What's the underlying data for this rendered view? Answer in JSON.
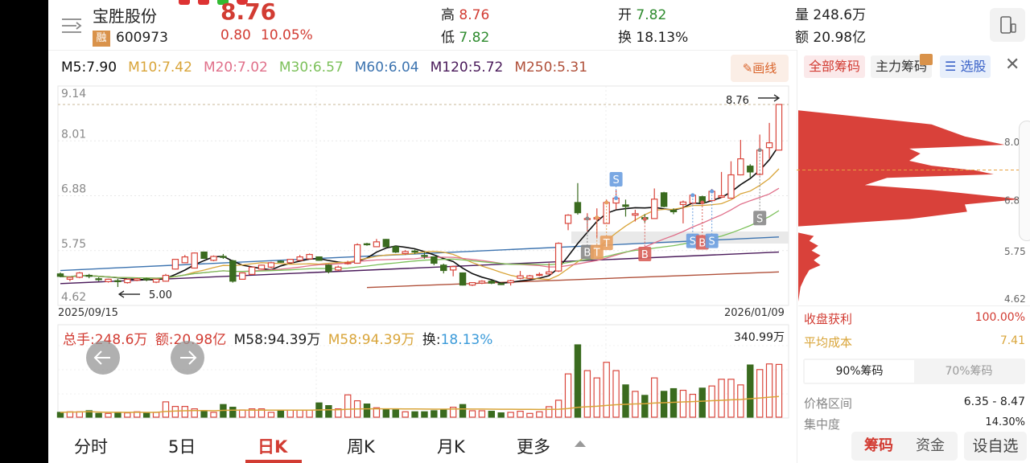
{
  "stock": {
    "name": "宝胜股份",
    "badge": "融",
    "code": "600973",
    "price": "8.76",
    "change": "0.80",
    "change_pct": "10.05%"
  },
  "quote": {
    "high_label": "高",
    "high": "8.76",
    "low_label": "低",
    "low": "7.82",
    "open_label": "开",
    "open": "7.82",
    "turnover_label": "换",
    "turnover": "18.13%",
    "volume_label": "量",
    "volume": "248.6万",
    "amount_label": "额",
    "amount": "20.98亿"
  },
  "ma_legend": [
    {
      "text": "M5:7.90",
      "color": "#111111"
    },
    {
      "text": "M10:7.42",
      "color": "#d9a53a"
    },
    {
      "text": "M20:7.02",
      "color": "#e0708a"
    },
    {
      "text": "M30:6.57",
      "color": "#7cc05a"
    },
    {
      "text": "M60:6.04",
      "color": "#3d74b0"
    },
    {
      "text": "M120:5.72",
      "color": "#4a1a5a"
    },
    {
      "text": "M250:5.31",
      "color": "#b0503a"
    }
  ],
  "draw_button": "画线",
  "chart": {
    "price_ticks": [
      "9.14",
      "8.01",
      "6.88",
      "5.75",
      "4.62"
    ],
    "ylim": [
      4.62,
      9.14
    ],
    "last_price_label": "8.76",
    "min_price_label": "5.00",
    "date_start": "2025/09/15",
    "date_end": "2026/01/09",
    "colors": {
      "up": "#d9463c",
      "down": "#3a6b1f"
    },
    "ohlc": [
      [
        5.27,
        5.3,
        5.2,
        5.22
      ],
      [
        5.16,
        5.21,
        5.12,
        5.2
      ],
      [
        5.2,
        5.31,
        5.18,
        5.29
      ],
      [
        5.24,
        5.27,
        5.18,
        5.23
      ],
      [
        5.17,
        5.2,
        5.12,
        5.16
      ],
      [
        5.11,
        5.17,
        5.09,
        5.16
      ],
      [
        5.13,
        5.17,
        5.0,
        5.12
      ],
      [
        5.09,
        5.17,
        5.07,
        5.16
      ],
      [
        5.14,
        5.19,
        5.12,
        5.17
      ],
      [
        5.17,
        5.19,
        5.12,
        5.15
      ],
      [
        5.1,
        5.17,
        5.08,
        5.16
      ],
      [
        5.12,
        5.27,
        5.11,
        5.24
      ],
      [
        5.37,
        5.58,
        5.36,
        5.57
      ],
      [
        5.5,
        5.66,
        5.49,
        5.62
      ],
      [
        5.39,
        5.71,
        5.38,
        5.7
      ],
      [
        5.72,
        5.73,
        5.58,
        5.59
      ],
      [
        5.55,
        5.65,
        5.53,
        5.63
      ],
      [
        5.63,
        5.68,
        5.58,
        5.62
      ],
      [
        5.54,
        5.56,
        5.09,
        5.12
      ],
      [
        5.16,
        5.3,
        5.15,
        5.29
      ],
      [
        5.26,
        5.42,
        5.25,
        5.41
      ],
      [
        5.37,
        5.46,
        5.36,
        5.45
      ],
      [
        5.41,
        5.52,
        5.38,
        5.5
      ],
      [
        5.53,
        5.55,
        5.5,
        5.52
      ],
      [
        5.5,
        5.58,
        5.49,
        5.57
      ],
      [
        5.55,
        5.66,
        5.54,
        5.62
      ],
      [
        5.58,
        5.69,
        5.57,
        5.67
      ],
      [
        5.62,
        5.63,
        5.54,
        5.55
      ],
      [
        5.45,
        5.47,
        5.28,
        5.32
      ],
      [
        5.35,
        5.44,
        5.33,
        5.41
      ],
      [
        5.48,
        5.54,
        5.46,
        5.5
      ],
      [
        5.49,
        5.9,
        5.48,
        5.87
      ],
      [
        5.89,
        5.91,
        5.85,
        5.88
      ],
      [
        5.83,
        5.99,
        5.82,
        5.93
      ],
      [
        5.98,
        5.99,
        5.83,
        5.83
      ],
      [
        5.83,
        5.85,
        5.7,
        5.72
      ],
      [
        5.69,
        5.76,
        5.66,
        5.73
      ],
      [
        5.74,
        5.77,
        5.68,
        5.73
      ],
      [
        5.65,
        5.72,
        5.58,
        5.64
      ],
      [
        5.62,
        5.63,
        5.45,
        5.49
      ],
      [
        5.45,
        5.48,
        5.28,
        5.34
      ],
      [
        5.35,
        5.44,
        5.22,
        5.42
      ],
      [
        5.29,
        5.3,
        5.03,
        5.04
      ],
      [
        5.04,
        5.1,
        5.02,
        5.09
      ],
      [
        5.08,
        5.14,
        5.06,
        5.12
      ],
      [
        5.12,
        5.14,
        5.06,
        5.08
      ],
      [
        5.07,
        5.08,
        5.04,
        5.06
      ],
      [
        5.09,
        5.15,
        5.03,
        5.13
      ],
      [
        5.18,
        5.33,
        5.16,
        5.23
      ],
      [
        5.18,
        5.25,
        5.16,
        5.23
      ],
      [
        5.24,
        5.3,
        5.22,
        5.26
      ],
      [
        5.27,
        5.49,
        5.25,
        5.31
      ],
      [
        5.33,
        5.92,
        5.31,
        5.9
      ],
      [
        6.31,
        6.5,
        6.17,
        6.48
      ],
      [
        6.74,
        7.14,
        6.49,
        6.53
      ],
      [
        6.39,
        6.52,
        6.15,
        6.41
      ],
      [
        6.4,
        6.62,
        6.0,
        6.43
      ],
      [
        6.31,
        6.8,
        6.3,
        6.74
      ],
      [
        6.73,
        7.0,
        6.6,
        6.83
      ],
      [
        6.69,
        6.8,
        6.45,
        6.66
      ],
      [
        6.48,
        6.59,
        6.35,
        6.51
      ],
      [
        6.43,
        6.5,
        6.33,
        6.4
      ],
      [
        6.41,
        7.03,
        6.4,
        6.81
      ],
      [
        6.94,
        6.96,
        6.64,
        6.66
      ],
      [
        6.58,
        6.62,
        6.5,
        6.55
      ],
      [
        6.7,
        6.78,
        6.31,
        6.75
      ],
      [
        6.73,
        6.92,
        6.7,
        6.89
      ],
      [
        6.86,
        6.88,
        6.7,
        6.74
      ],
      [
        6.78,
        7.02,
        6.75,
        6.97
      ],
      [
        6.85,
        7.37,
        6.83,
        6.88
      ],
      [
        6.83,
        7.59,
        6.82,
        7.31
      ],
      [
        7.31,
        8.03,
        7.3,
        7.64
      ],
      [
        7.49,
        7.53,
        7.26,
        7.37
      ],
      [
        7.32,
        8.14,
        7.3,
        7.82
      ],
      [
        7.87,
        8.38,
        7.64,
        7.97
      ],
      [
        7.82,
        8.76,
        7.82,
        8.76
      ]
    ],
    "long_ma": [
      {
        "name": "M60",
        "from": 5.34,
        "to": 6.03,
        "start": 0,
        "color": "#3d74b0"
      },
      {
        "name": "M120",
        "from": 5.07,
        "to": 5.72,
        "start": 0,
        "color": "#4a1a5a"
      },
      {
        "name": "M250",
        "from": 4.99,
        "to": 5.31,
        "start": 32,
        "color": "#b0503a"
      }
    ],
    "markers": [
      {
        "label": "B",
        "candle": 56,
        "price": 5.72,
        "color": "#8a8a8a"
      },
      {
        "label": "T",
        "candle": 57,
        "price": 5.72,
        "color": "#e8a060"
      },
      {
        "label": "T",
        "candle": 58,
        "price": 5.91,
        "color": "#e8a060"
      },
      {
        "label": "S",
        "candle": 59,
        "price": 7.22,
        "color": "#6b9fe0"
      },
      {
        "label": "B",
        "candle": 62,
        "price": 5.68,
        "color": "#d9605a"
      },
      {
        "label": "S",
        "candle": 67,
        "price": 5.95,
        "color": "#6b9fe0"
      },
      {
        "label": "B",
        "candle": 68,
        "price": 5.92,
        "color": "#d9605a"
      },
      {
        "label": "S",
        "candle": 69,
        "price": 5.95,
        "color": "#6b9fe0"
      },
      {
        "label": "S",
        "candle": 74,
        "price": 6.42,
        "color": "#8a8a8a"
      }
    ]
  },
  "volume": {
    "total_label": "总手:248.6万",
    "amount_label": "额:20.98亿",
    "ma1_label": "M58:94.39万",
    "ma2_label": "M58:94.39万",
    "turnover_prefix": "换:",
    "turnover_value": "18.13%",
    "max_label": "340.99万",
    "max": 340.99,
    "values": [
      22.8,
      25.4,
      25.4,
      30.4,
      17.8,
      17.8,
      22.8,
      20.3,
      25.4,
      20.3,
      22.8,
      72.3,
      50.7,
      50.7,
      39.3,
      30.4,
      22.8,
      59.6,
      46.9,
      34.2,
      39.3,
      39.3,
      22.8,
      33.0,
      33.0,
      33.0,
      33.0,
      67.2,
      54.5,
      39.3,
      105.2,
      77.3,
      62.1,
      44.4,
      36.8,
      34.2,
      25.4,
      25.4,
      25.4,
      30.4,
      34.2,
      46.9,
      59.6,
      30.4,
      30.4,
      27.9,
      20.3,
      22.8,
      27.9,
      17.8,
      25.4,
      49.5,
      79.9,
      204.1,
      341.0,
      219.4,
      185.1,
      258.7,
      219.4,
      152.2,
      121.7,
      102.7,
      185.1,
      121.7,
      134.4,
      126.8,
      107.8,
      136.9,
      147.1,
      178.8,
      178.8,
      152.2,
      246.0,
      224.4,
      251.0,
      248.6
    ]
  },
  "bottom_tabs": [
    {
      "label": "分时"
    },
    {
      "label": "5日"
    },
    {
      "label": "日K",
      "active": true
    },
    {
      "label": "周K"
    },
    {
      "label": "月K"
    },
    {
      "label": "更多"
    }
  ],
  "chips": {
    "tabs": [
      "全部筹码",
      "主力筹码",
      "选股"
    ],
    "ticks": [
      "8.0",
      "6.8",
      "5.75",
      "4.62"
    ],
    "avg_cost_price": 7.41,
    "profile": [
      [
        [
          8.64,
          0
        ],
        [
          8.35,
          0.6
        ],
        [
          8.1,
          0.75
        ],
        [
          7.93,
          0.93
        ],
        [
          7.85,
          0.5
        ],
        [
          7.75,
          0.55
        ],
        [
          7.6,
          0.5
        ],
        [
          7.5,
          0.6
        ],
        [
          7.4,
          0.8
        ],
        [
          7.32,
          0.88
        ],
        [
          7.25,
          0.4
        ],
        [
          7.1,
          0.3
        ],
        [
          7.0,
          0.6
        ],
        [
          6.81,
          1.0
        ],
        [
          6.7,
          0.75
        ],
        [
          6.55,
          0.76
        ],
        [
          6.4,
          0.5
        ],
        [
          6.25,
          0
        ]
      ],
      [
        [
          6.12,
          0
        ],
        [
          6.05,
          0.07
        ],
        [
          5.95,
          0.05
        ],
        [
          5.85,
          0.09
        ],
        [
          5.75,
          0.06
        ],
        [
          5.65,
          0.1
        ],
        [
          5.55,
          0.07
        ],
        [
          5.45,
          0.1
        ],
        [
          5.35,
          0.05
        ],
        [
          5.2,
          0.03
        ],
        [
          5.0,
          0.01
        ],
        [
          4.7,
          0
        ]
      ]
    ],
    "profit_label": "收盘获利",
    "profit_value": "100.00%",
    "avg_label": "平均成本",
    "avg_value": "7.41",
    "toggle": [
      "90%筹码",
      "70%筹码"
    ],
    "range_label": "价格区间",
    "range_value": "6.35 - 8.47",
    "conc_label": "集中度",
    "conc_value": "14.30%",
    "bottom_buttons": [
      "筹码",
      "资金",
      "设自选"
    ]
  }
}
